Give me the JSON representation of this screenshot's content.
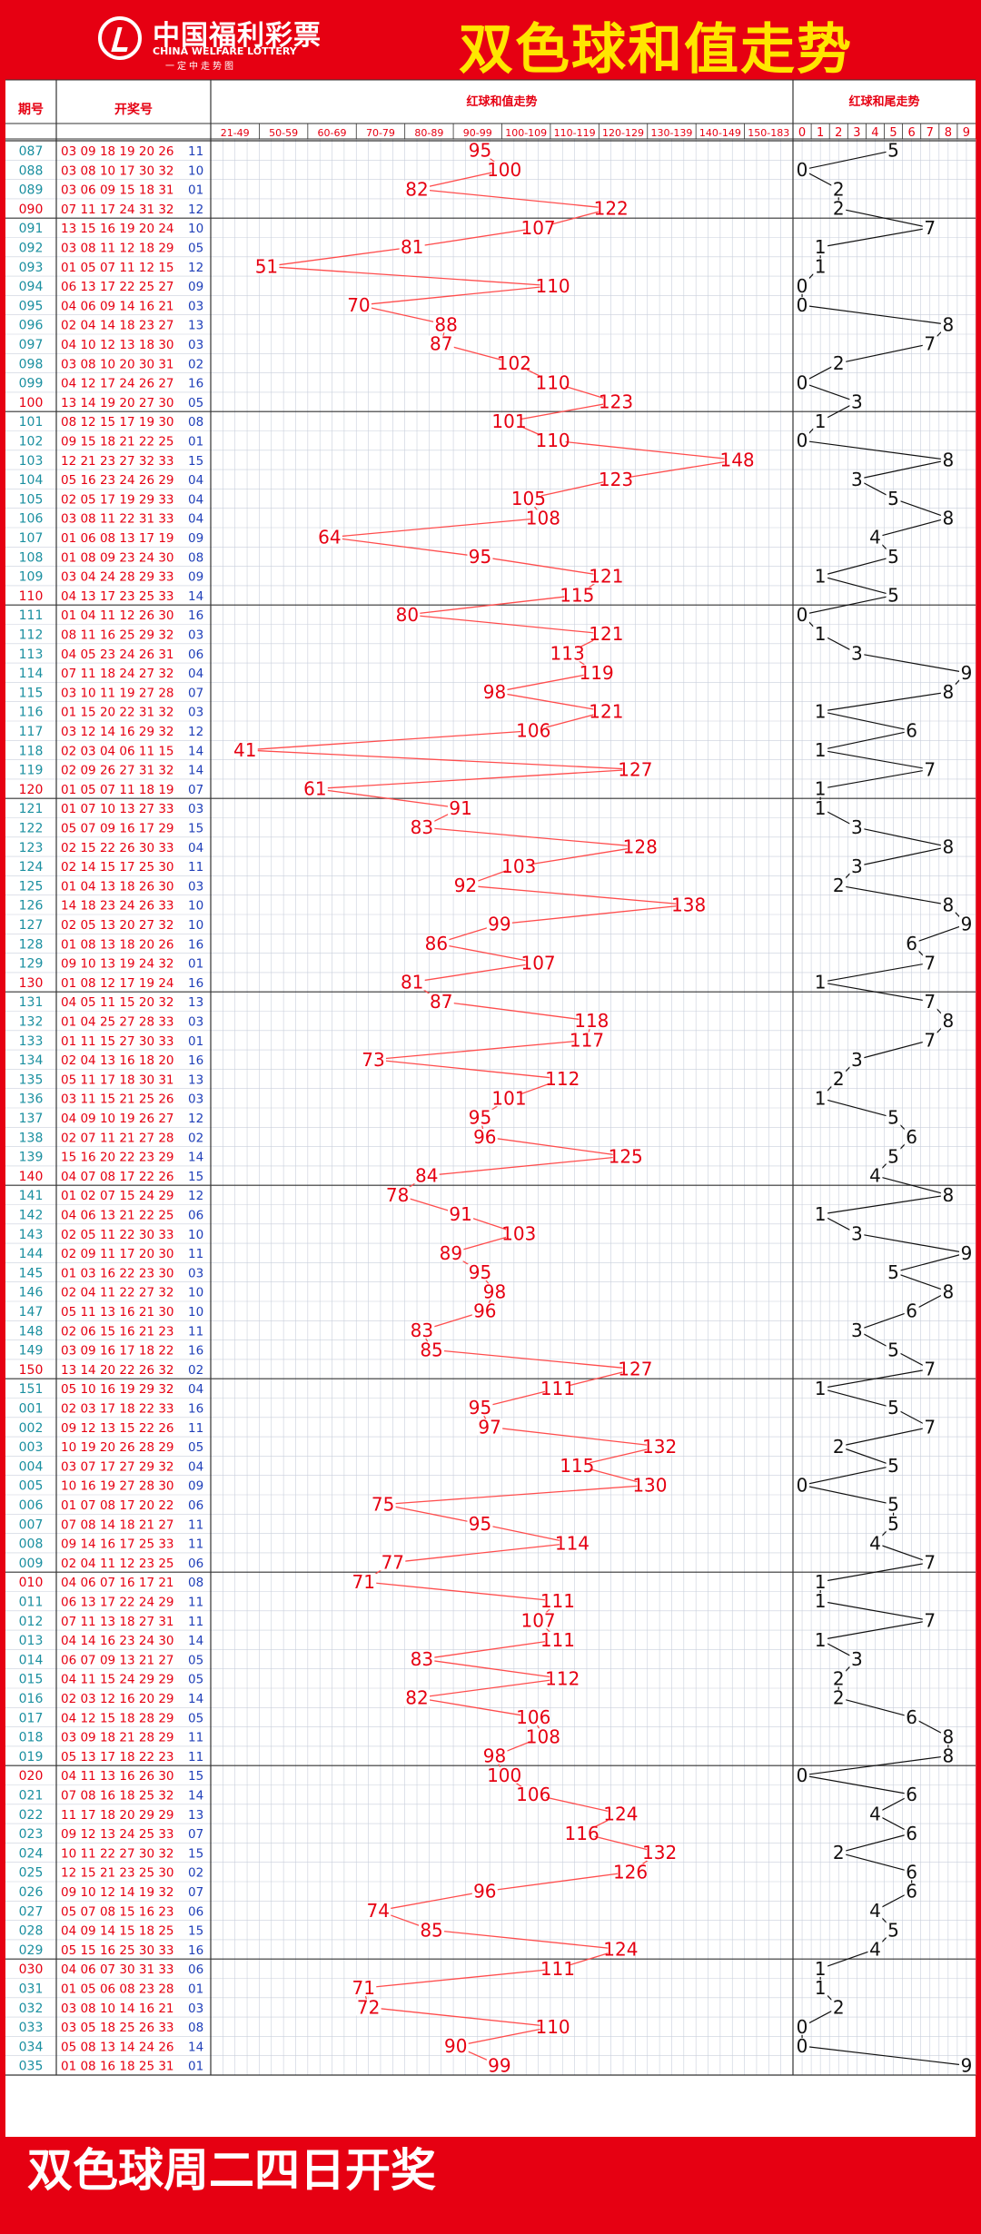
{
  "header": {
    "logo_cn": "中国福利彩票",
    "logo_en": "CHINA WELFARE LOTTERY",
    "logo_slogan": "一定中走势图",
    "title": "双色球和值走势"
  },
  "footer": {
    "text": "双色球周二四日开奖"
  },
  "columns": {
    "period": "期号",
    "draw": "开奖号",
    "sum_group": "红球和值走势",
    "tail_group": "红球和尾走势"
  },
  "chart_data": [
    {
      "type": "line",
      "title": "红球和值走势",
      "ranges": [
        "21-49",
        "50-59",
        "60-69",
        "70-79",
        "80-89",
        "90-99",
        "100-109",
        "110-119",
        "120-129",
        "130-139",
        "140-149",
        "150-183"
      ],
      "periods": [
        "087",
        "088",
        "089",
        "090",
        "091",
        "092",
        "093",
        "094",
        "095",
        "096",
        "097",
        "098",
        "099",
        "100",
        "101",
        "102",
        "103",
        "104",
        "105",
        "106",
        "107",
        "108",
        "109",
        "110",
        "111",
        "112",
        "113",
        "114",
        "115",
        "116",
        "117",
        "118",
        "119",
        "120",
        "121",
        "122",
        "123",
        "124",
        "125",
        "126",
        "127",
        "128",
        "129",
        "130",
        "131",
        "132",
        "133",
        "134",
        "135",
        "136",
        "137",
        "138",
        "139",
        "140",
        "141",
        "142",
        "143",
        "144",
        "145",
        "146",
        "147",
        "148",
        "149",
        "150",
        "151",
        "001",
        "002",
        "003",
        "004",
        "005",
        "006",
        "007",
        "008",
        "009",
        "010",
        "011",
        "012",
        "013",
        "014",
        "015",
        "016",
        "017",
        "018",
        "019",
        "020",
        "021",
        "022",
        "023",
        "024",
        "025",
        "026",
        "027",
        "028",
        "029",
        "030",
        "031",
        "032",
        "033",
        "034",
        "035"
      ],
      "values": [
        95,
        100,
        82,
        122,
        107,
        81,
        51,
        110,
        70,
        88,
        87,
        102,
        110,
        123,
        101,
        110,
        148,
        123,
        105,
        108,
        64,
        95,
        121,
        115,
        80,
        121,
        113,
        119,
        98,
        121,
        106,
        41,
        127,
        61,
        91,
        83,
        128,
        103,
        92,
        138,
        99,
        86,
        107,
        81,
        87,
        118,
        117,
        73,
        112,
        101,
        95,
        96,
        125,
        84,
        78,
        91,
        103,
        89,
        95,
        98,
        96,
        83,
        85,
        127,
        111,
        95,
        97,
        132,
        115,
        130,
        75,
        95,
        114,
        77,
        71,
        111,
        107,
        111,
        83,
        112,
        82,
        106,
        108,
        98,
        100,
        106,
        124,
        116,
        132,
        126,
        96,
        74,
        85,
        124,
        111,
        71,
        72,
        110,
        90,
        99
      ]
    },
    {
      "type": "line",
      "title": "红球和尾走势",
      "categories": [
        "0",
        "1",
        "2",
        "3",
        "4",
        "5",
        "6",
        "7",
        "8",
        "9"
      ],
      "tails": [
        5,
        0,
        2,
        2,
        7,
        1,
        1,
        0,
        0,
        8,
        7,
        2,
        0,
        3,
        1,
        0,
        8,
        3,
        5,
        8,
        4,
        5,
        1,
        5,
        0,
        1,
        3,
        9,
        8,
        1,
        6,
        1,
        7,
        1,
        1,
        3,
        8,
        3,
        2,
        8,
        9,
        6,
        7,
        1,
        7,
        8,
        7,
        3,
        2,
        1,
        5,
        6,
        5,
        4,
        8,
        1,
        3,
        9,
        5,
        8,
        6,
        3,
        5,
        7,
        1,
        5,
        7,
        2,
        5,
        0,
        5,
        5,
        4,
        7,
        1,
        1,
        7,
        1,
        3,
        2,
        2,
        6,
        8,
        8,
        0,
        6,
        4,
        6,
        2,
        6,
        6,
        4,
        5,
        4,
        1,
        1,
        2,
        0,
        0,
        9
      ]
    }
  ],
  "draws": [
    {
      "reds": "03 09 18 19 20 26",
      "blue": "11"
    },
    {
      "reds": "03 08 10 17 30 32",
      "blue": "10"
    },
    {
      "reds": "03 06 09 15 18 31",
      "blue": "01"
    },
    {
      "reds": "07 11 17 24 31 32",
      "blue": "12"
    },
    {
      "reds": "13 15 16 19 20 24",
      "blue": "10"
    },
    {
      "reds": "03 08 11 12 18 29",
      "blue": "05"
    },
    {
      "reds": "01 05 07 11 12 15",
      "blue": "12"
    },
    {
      "reds": "06 13 17 22 25 27",
      "blue": "09"
    },
    {
      "reds": "04 06 09 14 16 21",
      "blue": "03"
    },
    {
      "reds": "02 04 14 18 23 27",
      "blue": "13"
    },
    {
      "reds": "04 10 12 13 18 30",
      "blue": "03"
    },
    {
      "reds": "03 08 10 20 30 31",
      "blue": "02"
    },
    {
      "reds": "04 12 17 24 26 27",
      "blue": "16"
    },
    {
      "reds": "13 14 19 20 27 30",
      "blue": "05"
    },
    {
      "reds": "08 12 15 17 19 30",
      "blue": "08"
    },
    {
      "reds": "09 15 18 21 22 25",
      "blue": "01"
    },
    {
      "reds": "12 21 23 27 32 33",
      "blue": "15"
    },
    {
      "reds": "05 16 23 24 26 29",
      "blue": "04"
    },
    {
      "reds": "02 05 17 19 29 33",
      "blue": "04"
    },
    {
      "reds": "03 08 11 22 31 33",
      "blue": "04"
    },
    {
      "reds": "01 06 08 13 17 19",
      "blue": "09"
    },
    {
      "reds": "01 08 09 23 24 30",
      "blue": "08"
    },
    {
      "reds": "03 04 24 28 29 33",
      "blue": "09"
    },
    {
      "reds": "04 13 17 23 25 33",
      "blue": "14"
    },
    {
      "reds": "01 04 11 12 26 30",
      "blue": "16"
    },
    {
      "reds": "08 11 16 25 29 32",
      "blue": "03"
    },
    {
      "reds": "04 05 23 24 26 31",
      "blue": "06"
    },
    {
      "reds": "07 11 18 24 27 32",
      "blue": "04"
    },
    {
      "reds": "03 10 11 19 27 28",
      "blue": "07"
    },
    {
      "reds": "01 15 20 22 31 32",
      "blue": "03"
    },
    {
      "reds": "03 12 14 16 29 32",
      "blue": "12"
    },
    {
      "reds": "02 03 04 06 11 15",
      "blue": "14"
    },
    {
      "reds": "02 09 26 27 31 32",
      "blue": "14"
    },
    {
      "reds": "01 05 07 11 18 19",
      "blue": "07"
    },
    {
      "reds": "01 07 10 13 27 33",
      "blue": "03"
    },
    {
      "reds": "05 07 09 16 17 29",
      "blue": "15"
    },
    {
      "reds": "02 15 22 26 30 33",
      "blue": "04"
    },
    {
      "reds": "02 14 15 17 25 30",
      "blue": "11"
    },
    {
      "reds": "01 04 13 18 26 30",
      "blue": "03"
    },
    {
      "reds": "14 18 23 24 26 33",
      "blue": "10"
    },
    {
      "reds": "02 05 13 20 27 32",
      "blue": "10"
    },
    {
      "reds": "01 08 13 18 20 26",
      "blue": "16"
    },
    {
      "reds": "09 10 13 19 24 32",
      "blue": "01"
    },
    {
      "reds": "01 08 12 17 19 24",
      "blue": "16"
    },
    {
      "reds": "04 05 11 15 20 32",
      "blue": "13"
    },
    {
      "reds": "01 04 25 27 28 33",
      "blue": "03"
    },
    {
      "reds": "01 11 15 27 30 33",
      "blue": "01"
    },
    {
      "reds": "02 04 13 16 18 20",
      "blue": "16"
    },
    {
      "reds": "05 11 17 18 30 31",
      "blue": "13"
    },
    {
      "reds": "03 11 15 21 25 26",
      "blue": "03"
    },
    {
      "reds": "04 09 10 19 26 27",
      "blue": "12"
    },
    {
      "reds": "02 07 11 21 27 28",
      "blue": "02"
    },
    {
      "reds": "15 16 20 22 23 29",
      "blue": "14"
    },
    {
      "reds": "04 07 08 17 22 26",
      "blue": "15"
    },
    {
      "reds": "01 02 07 15 24 29",
      "blue": "12"
    },
    {
      "reds": "04 06 13 21 22 25",
      "blue": "06"
    },
    {
      "reds": "02 05 11 22 30 33",
      "blue": "10"
    },
    {
      "reds": "02 09 11 17 20 30",
      "blue": "11"
    },
    {
      "reds": "01 03 16 22 23 30",
      "blue": "03"
    },
    {
      "reds": "02 04 11 22 27 32",
      "blue": "10"
    },
    {
      "reds": "05 11 13 16 21 30",
      "blue": "10"
    },
    {
      "reds": "02 06 15 16 21 23",
      "blue": "11"
    },
    {
      "reds": "03 09 16 17 18 22",
      "blue": "16"
    },
    {
      "reds": "13 14 20 22 26 32",
      "blue": "02"
    },
    {
      "reds": "05 10 16 19 29 32",
      "blue": "04"
    },
    {
      "reds": "02 03 17 18 22 33",
      "blue": "16"
    },
    {
      "reds": "09 12 13 15 22 26",
      "blue": "11"
    },
    {
      "reds": "10 19 20 26 28 29",
      "blue": "05"
    },
    {
      "reds": "03 07 17 27 29 32",
      "blue": "04"
    },
    {
      "reds": "10 16 19 27 28 30",
      "blue": "09"
    },
    {
      "reds": "01 07 08 17 20 22",
      "blue": "06"
    },
    {
      "reds": "07 08 14 18 21 27",
      "blue": "11"
    },
    {
      "reds": "09 14 16 17 25 33",
      "blue": "11"
    },
    {
      "reds": "02 04 11 12 23 25",
      "blue": "06"
    },
    {
      "reds": "04 06 07 16 17 21",
      "blue": "08"
    },
    {
      "reds": "06 13 17 22 24 29",
      "blue": "11"
    },
    {
      "reds": "07 11 13 18 27 31",
      "blue": "11"
    },
    {
      "reds": "04 14 16 23 24 30",
      "blue": "14"
    },
    {
      "reds": "06 07 09 13 21 27",
      "blue": "05"
    },
    {
      "reds": "04 11 15 24 29 29",
      "blue": "05"
    },
    {
      "reds": "02 03 12 16 20 29",
      "blue": "14"
    },
    {
      "reds": "04 12 15 18 28 29",
      "blue": "05"
    },
    {
      "reds": "03 09 18 21 28 29",
      "blue": "11"
    },
    {
      "reds": "05 13 17 18 22 23",
      "blue": "11"
    },
    {
      "reds": "04 11 13 16 26 30",
      "blue": "15"
    },
    {
      "reds": "07 08 16 18 25 32",
      "blue": "14"
    },
    {
      "reds": "11 17 18 20 29 29",
      "blue": "13"
    },
    {
      "reds": "09 12 13 24 25 33",
      "blue": "07"
    },
    {
      "reds": "10 11 22 27 30 32",
      "blue": "15"
    },
    {
      "reds": "12 15 21 23 25 30",
      "blue": "02"
    },
    {
      "reds": "09 10 12 14 19 32",
      "blue": "07"
    },
    {
      "reds": "05 07 08 15 16 23",
      "blue": "06"
    },
    {
      "reds": "04 09 14 15 18 25",
      "blue": "15"
    },
    {
      "reds": "05 15 16 25 30 33",
      "blue": "16"
    },
    {
      "reds": "04 06 07 30 31 33",
      "blue": "06"
    },
    {
      "reds": "01 05 06 08 23 28",
      "blue": "01"
    },
    {
      "reds": "03 08 10 14 16 21",
      "blue": "03"
    },
    {
      "reds": "03 05 18 25 26 33",
      "blue": "08"
    },
    {
      "reds": "05 08 13 14 24 26",
      "blue": "14"
    },
    {
      "reds": "01 08 16 18 25 31",
      "blue": "01"
    }
  ],
  "colors": {
    "brand_red": "#e60012",
    "title_yellow": "#ffe600",
    "period_teal": "#1a8fa0",
    "blue_ball": "#1f3fb8",
    "sum_line": "#ff4d4d",
    "grid": "#c9cfdc"
  }
}
